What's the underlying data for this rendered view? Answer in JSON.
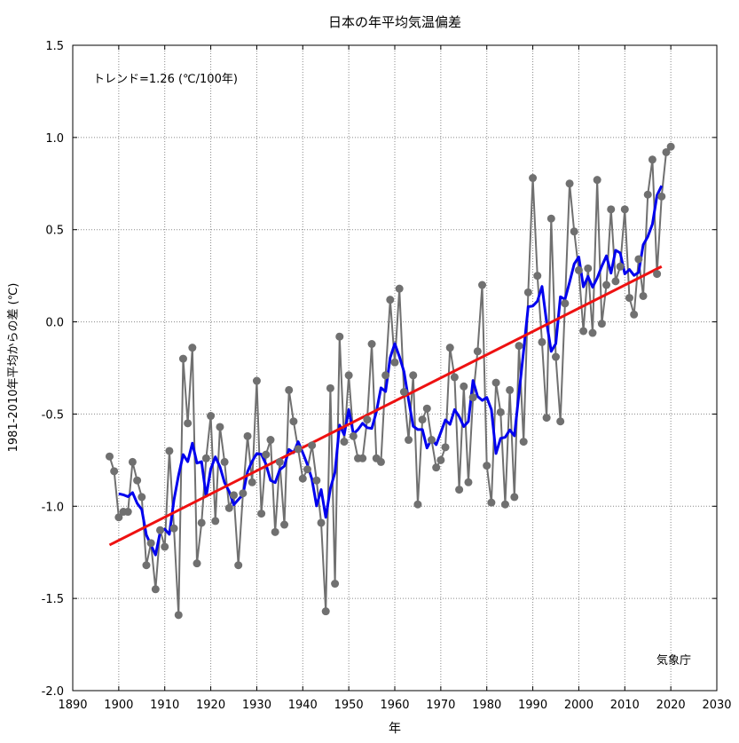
{
  "chart_data": {
    "type": "line",
    "title": "日本の年平均気温偏差",
    "xlabel": "年",
    "ylabel": "1981-2010年平均からの差 (℃)",
    "annotation": "トレンド=1.26 (℃/100年)",
    "credit": "気象庁",
    "xlim": [
      1890,
      2030
    ],
    "ylim": [
      -2.0,
      1.5
    ],
    "xticks": [
      1890,
      1900,
      1910,
      1920,
      1930,
      1940,
      1950,
      1960,
      1970,
      1980,
      1990,
      2000,
      2010,
      2020,
      2030
    ],
    "yticks": [
      -2.0,
      -1.5,
      -1.0,
      -0.5,
      0.0,
      0.5,
      1.0,
      1.5
    ],
    "ytick_labels": [
      "-2.0",
      "-1.5",
      "-1.0",
      "-0.5",
      "0.0",
      "0.5",
      "1.0",
      "1.5"
    ],
    "grid": true,
    "colors": {
      "annual": "#707070",
      "moving_average": "#0000ee",
      "trend": "#ee1111"
    },
    "series": [
      {
        "key": "annual",
        "x_start": 1898,
        "values": [
          -0.73,
          -0.81,
          -1.06,
          -1.03,
          -1.03,
          -0.76,
          -0.86,
          -0.95,
          -1.32,
          -1.2,
          -1.45,
          -1.13,
          -1.22,
          -0.7,
          -1.12,
          -1.59,
          -0.2,
          -0.55,
          -0.14,
          -1.31,
          -1.09,
          -0.74,
          -0.51,
          -1.08,
          -0.57,
          -0.76,
          -1.01,
          -0.94,
          -1.32,
          -0.93,
          -0.62,
          -0.87,
          -0.32,
          -1.04,
          -0.72,
          -0.64,
          -1.14,
          -0.76,
          -1.1,
          -0.37,
          -0.54,
          -0.69,
          -0.85,
          -0.8,
          -0.67,
          -0.86,
          -1.09,
          -1.57,
          -0.36,
          -1.42,
          -0.08,
          -0.65,
          -0.29,
          -0.62,
          -0.74,
          -0.74,
          -0.53,
          -0.12,
          -0.74,
          -0.76,
          -0.29,
          0.12,
          -0.22,
          0.18,
          -0.38,
          -0.64,
          -0.29,
          -0.99,
          -0.53,
          -0.47,
          -0.64,
          -0.79,
          -0.75,
          -0.68,
          -0.14,
          -0.3,
          -0.91,
          -0.35,
          -0.87,
          -0.41,
          -0.16,
          0.2,
          -0.78,
          -0.98,
          -0.33,
          -0.49,
          -0.99,
          -0.37,
          -0.95,
          -0.13,
          -0.65,
          0.16,
          0.78,
          0.25,
          -0.11,
          -0.52,
          0.56,
          -0.19,
          -0.54,
          0.1,
          0.75,
          0.49,
          0.28,
          -0.05,
          0.29,
          -0.06,
          0.77,
          -0.01,
          0.2,
          0.61,
          0.22,
          0.3,
          0.61,
          0.13,
          0.04,
          0.34,
          0.14,
          0.69,
          0.88,
          0.26,
          0.68,
          0.92,
          0.95
        ]
      },
      {
        "key": "moving_average",
        "window": 5
      },
      {
        "key": "trend",
        "x": [
          1898,
          2018
        ],
        "values": [
          -1.21,
          0.3
        ]
      }
    ]
  }
}
